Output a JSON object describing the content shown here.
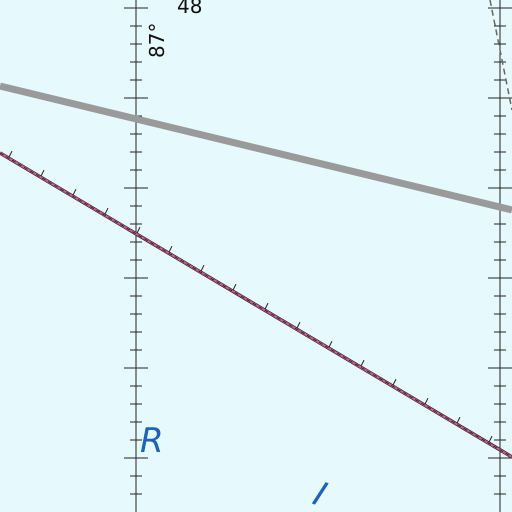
{
  "map": {
    "background_color": "#e6f9fc",
    "labels": {
      "longitude": "87°",
      "top_partial": "48",
      "water_letter_1": "R",
      "water_letter_2": "I"
    },
    "colors": {
      "graticule": "#222222",
      "gray_route": "#9a9a9a",
      "boundary_fill": "#c0648e",
      "boundary_stroke": "#3b1a2a",
      "water_label": "#1f63b5",
      "dashed_edge": "#666666"
    }
  }
}
